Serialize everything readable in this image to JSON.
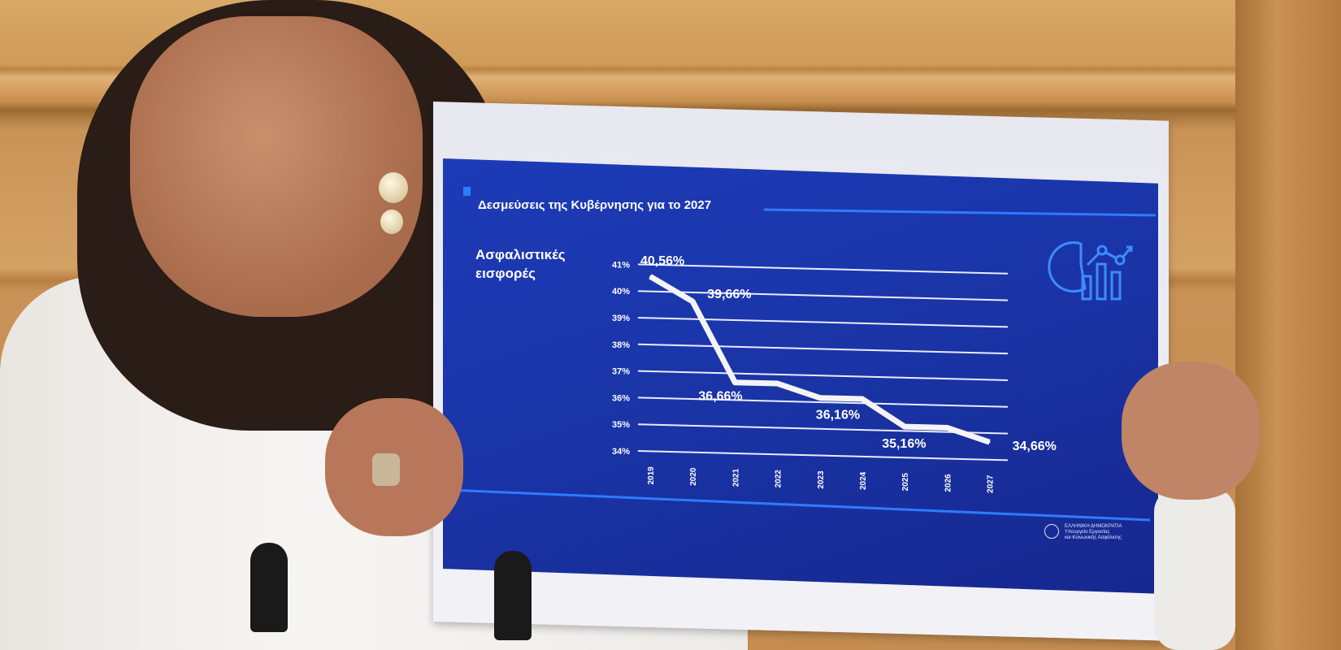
{
  "slide": {
    "title": "Δεσμεύσεις της Κυβέρνησης για το 2027",
    "chart_label_line1": "Ασφαλιστικές",
    "chart_label_line2": "εισφορές",
    "icon": "chart-analytics-icon",
    "footer_logo": {
      "line1": "ΕΛΛΗΝΙΚΗ ΔΗΜΟΚΡΑΤΙΑ",
      "line2": "Υπουργείο Εργασίας",
      "line3": "και Κοινωνικής Ασφάλισης"
    },
    "colors": {
      "background": "#1a35a8",
      "accent": "#2f7bff",
      "line": "#ffffff"
    }
  },
  "chart_data": {
    "type": "line",
    "title": "Δεσμεύσεις της Κυβέρνησης για το 2027",
    "ylabel": "Ασφαλιστικές εισφορές",
    "categories": [
      "2019",
      "2020",
      "2021",
      "2022",
      "2023",
      "2024",
      "2025",
      "2026",
      "2027"
    ],
    "values": [
      40.56,
      39.66,
      36.66,
      36.66,
      36.16,
      36.16,
      35.16,
      35.16,
      34.66
    ],
    "ylim": [
      34,
      41
    ],
    "yticks": [
      "34%",
      "35%",
      "36%",
      "37%",
      "38%",
      "39%",
      "40%",
      "41%"
    ],
    "grid": true,
    "data_labels": [
      {
        "x": "2019",
        "text": "40,56%"
      },
      {
        "x": "2020",
        "text": "39,66%"
      },
      {
        "x": "2021",
        "text": "36,66%"
      },
      {
        "x": "2023",
        "text": "36,16%"
      },
      {
        "x": "2025",
        "text": "35,16%"
      },
      {
        "x": "2027",
        "text": "34,66%"
      }
    ]
  }
}
